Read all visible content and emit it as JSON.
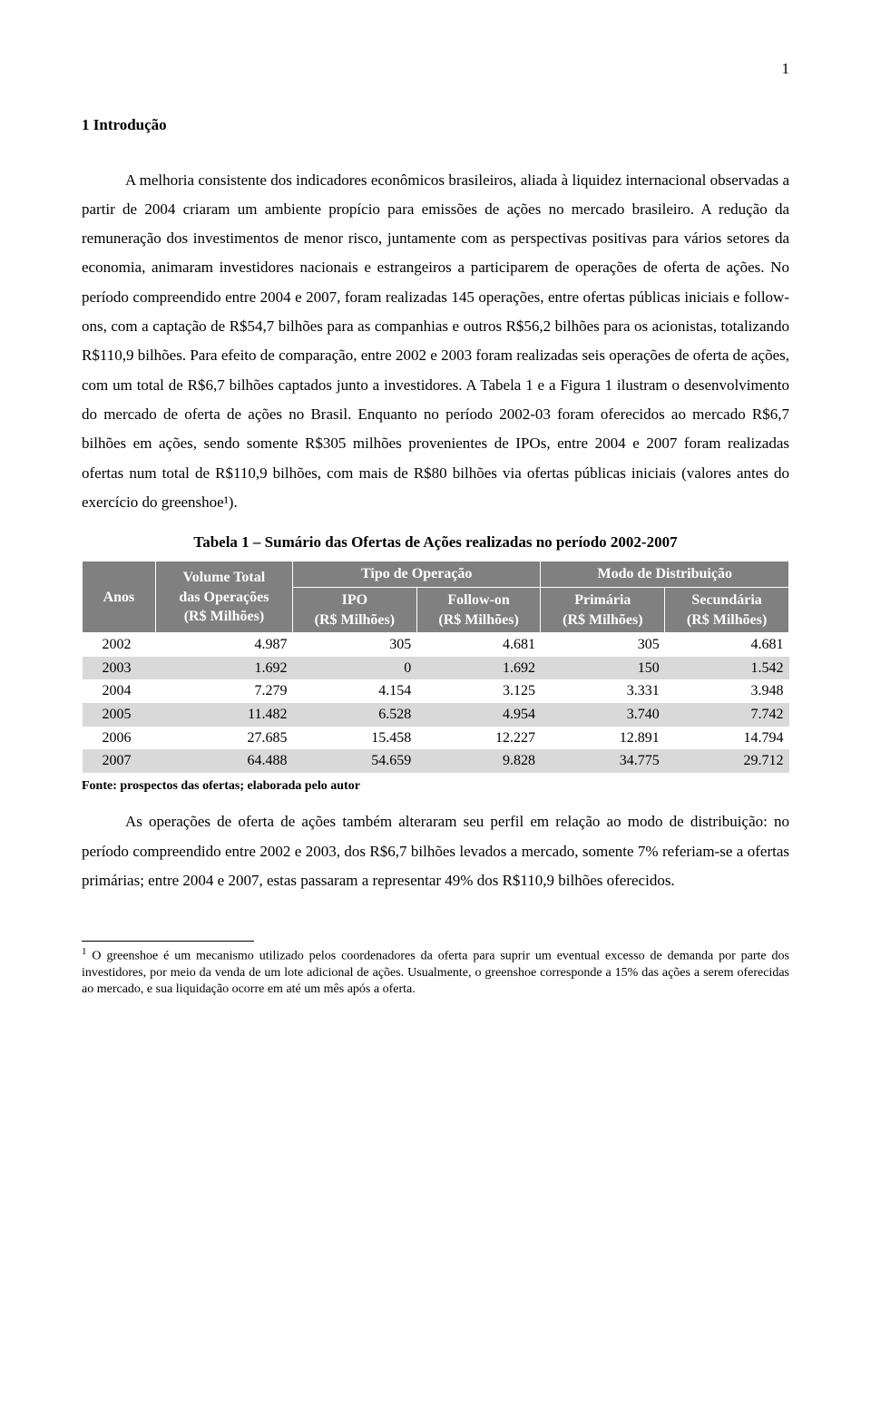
{
  "page_number": "1",
  "section": {
    "heading": "1   Introdução",
    "paragraph1": "A melhoria consistente dos indicadores econômicos brasileiros, aliada à liquidez internacional observadas a partir de 2004 criaram um ambiente propício para emissões de ações no mercado brasileiro. A redução da remuneração dos investimentos de menor risco, juntamente com as perspectivas positivas para vários setores da economia, animaram investidores nacionais e estrangeiros a participarem de operações de oferta de ações. No período compreendido entre 2004 e 2007, foram realizadas 145 operações, entre ofertas públicas iniciais e follow-ons, com a captação de R$54,7 bilhões para as companhias e outros R$56,2 bilhões para os acionistas, totalizando R$110,9 bilhões. Para efeito de comparação, entre 2002 e 2003 foram realizadas seis operações de oferta de ações, com um total de R$6,7 bilhões captados junto a investidores. A Tabela 1 e a Figura 1 ilustram o desenvolvimento do mercado de oferta de ações no Brasil. Enquanto no período 2002-03 foram oferecidos ao mercado R$6,7 bilhões em ações, sendo somente R$305 milhões provenientes de IPOs, entre 2004 e 2007 foram realizadas ofertas num total de R$110,9 bilhões, com mais de R$80 bilhões via ofertas públicas iniciais (valores antes do exercício do greenshoe¹).",
    "paragraph2": "As operações de oferta de ações também alteraram seu perfil em relação ao modo de distribuição: no período compreendido entre 2002 e 2003, dos R$6,7 bilhões levados a mercado, somente 7% referiam-se a ofertas primárias; entre 2004 e 2007, estas passaram a representar 49% dos R$110,9 bilhões oferecidos."
  },
  "table": {
    "title": "Tabela 1 – Sumário das Ofertas de Ações realizadas no período 2002-2007",
    "header_bg": "#808080",
    "header_fg": "#ffffff",
    "shade_bg": "#d9d9d9",
    "headers": {
      "anos": "Anos",
      "volume_total_line1": "Volume Total",
      "volume_total_line2": "das Operações",
      "volume_total_line3": "(R$ Milhões)",
      "tipo_operacao": "Tipo de Operação",
      "modo_distribuicao": "Modo de Distribuição",
      "ipo_line1": "IPO",
      "ipo_line2": "(R$ Milhões)",
      "followon_line1": "Follow-on",
      "followon_line2": "(R$ Milhões)",
      "primaria_line1": "Primária",
      "primaria_line2": "(R$ Milhões)",
      "secundaria_line1": "Secundária",
      "secundaria_line2": "(R$ Milhões)"
    },
    "rows": [
      {
        "year": "2002",
        "volume": "4.987",
        "ipo": "305",
        "followon": "4.681",
        "primaria": "305",
        "secundaria": "4.681",
        "shaded": false
      },
      {
        "year": "2003",
        "volume": "1.692",
        "ipo": "0",
        "followon": "1.692",
        "primaria": "150",
        "secundaria": "1.542",
        "shaded": true
      },
      {
        "year": "2004",
        "volume": "7.279",
        "ipo": "4.154",
        "followon": "3.125",
        "primaria": "3.331",
        "secundaria": "3.948",
        "shaded": false
      },
      {
        "year": "2005",
        "volume": "11.482",
        "ipo": "6.528",
        "followon": "4.954",
        "primaria": "3.740",
        "secundaria": "7.742",
        "shaded": true
      },
      {
        "year": "2006",
        "volume": "27.685",
        "ipo": "15.458",
        "followon": "12.227",
        "primaria": "12.891",
        "secundaria": "14.794",
        "shaded": false
      },
      {
        "year": "2007",
        "volume": "64.488",
        "ipo": "54.659",
        "followon": "9.828",
        "primaria": "34.775",
        "secundaria": "29.712",
        "shaded": true
      }
    ],
    "footnote": "Fonte: prospectos das ofertas; elaborada pelo autor"
  },
  "footnote": {
    "marker": "1",
    "text": " O greenshoe é um mecanismo utilizado pelos coordenadores da oferta para suprir um eventual excesso de demanda por parte dos investidores, por meio da venda de um lote adicional de ações. Usualmente, o greenshoe corresponde a 15% das ações a serem oferecidas ao mercado, e sua liquidação ocorre em até um mês após a oferta."
  }
}
